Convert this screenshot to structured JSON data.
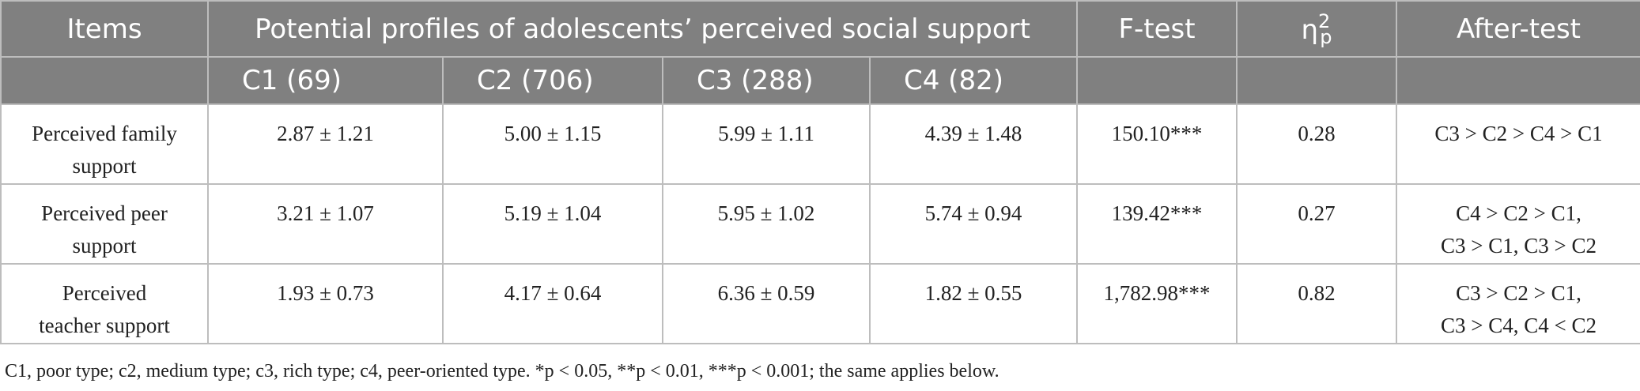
{
  "header": {
    "items": "Items",
    "profiles": "Potential profiles of adolescents’ perceived social support",
    "ftest": "F-test",
    "eta_symbol": "η",
    "eta_sup": "2",
    "eta_sub": "p",
    "aftertest": "After-test",
    "sub": [
      "C1 (69)",
      "C2 (706)",
      "C3 (288)",
      "C4 (82)"
    ]
  },
  "rows": [
    {
      "item": [
        "Perceived family",
        "support"
      ],
      "c1": "2.87 ± 1.21",
      "c2": "5.00 ± 1.15",
      "c3": "5.99 ± 1.11",
      "c4": "4.39 ± 1.48",
      "f": "150.10***",
      "eta": "0.28",
      "after": [
        "C3 > C2 > C4 > C1",
        ""
      ]
    },
    {
      "item": [
        "Perceived peer",
        "support"
      ],
      "c1": "3.21 ± 1.07",
      "c2": "5.19 ± 1.04",
      "c3": "5.95 ± 1.02",
      "c4": "5.74 ± 0.94",
      "f": "139.42***",
      "eta": "0.27",
      "after": [
        "C4 > C2 > C1,",
        "C3 > C1, C3 > C2"
      ]
    },
    {
      "item": [
        "Perceived",
        "teacher support"
      ],
      "c1": "1.93 ± 0.73",
      "c2": "4.17 ± 0.64",
      "c3": "6.36 ± 0.59",
      "c4": "1.82 ± 0.55",
      "f": "1,782.98***",
      "eta": "0.82",
      "after": [
        "C3 > C2 > C1,",
        "C3 > C4, C4 < C2"
      ]
    }
  ],
  "note": "C1, poor type; c2, medium type; c3, rich type; c4, peer-oriented type. *p < 0.05, **p < 0.01, ***p < 0.001; the same applies below."
}
